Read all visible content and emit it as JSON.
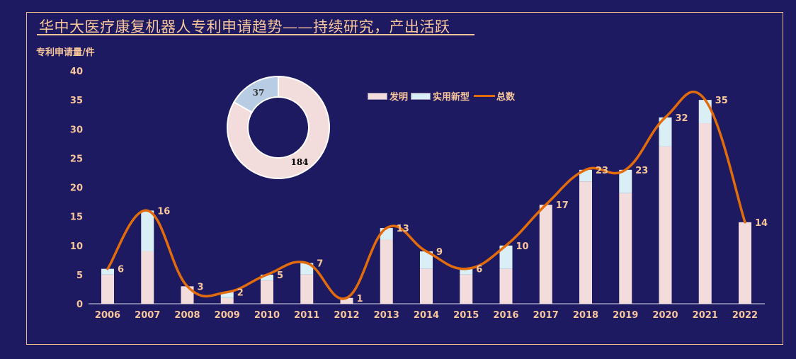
{
  "title": "华中大医疗康复机器人专利申请趋势——持续研究，产出活跃",
  "colors": {
    "background": "#1e1a62",
    "invention": "#f2dcdc",
    "utility": "#daeef5",
    "total": "#e36c0a",
    "text": "#f6c59a",
    "donut_utility": "#b8cce4"
  },
  "chart_data": [
    {
      "type": "bar",
      "stacked": true,
      "ylabel": "专利申请量/件",
      "ylim": [
        0,
        40
      ],
      "yticks": [
        "0",
        "5",
        "10",
        "15",
        "20",
        "25",
        "30",
        "35",
        "40"
      ],
      "categories": [
        "2006",
        "2007",
        "2008",
        "2009",
        "2010",
        "2011",
        "2012",
        "2013",
        "2014",
        "2015",
        "2016",
        "2017",
        "2018",
        "2019",
        "2020",
        "2021",
        "2022"
      ],
      "series": [
        {
          "name": "发明",
          "type": "bar",
          "values": [
            5,
            9,
            3,
            1,
            4,
            5,
            1,
            11,
            6,
            5,
            6,
            17,
            21,
            19,
            27,
            31,
            14
          ]
        },
        {
          "name": "实用新型",
          "type": "bar",
          "values": [
            1,
            7,
            0,
            1,
            1,
            2,
            0,
            2,
            3,
            1,
            4,
            0,
            2,
            4,
            5,
            4,
            0
          ]
        },
        {
          "name": "总数",
          "type": "line",
          "smooth": true,
          "values": [
            6,
            16,
            3,
            2,
            5,
            7,
            1,
            13,
            9,
            6,
            10,
            17,
            23,
            23,
            32,
            35,
            14
          ]
        }
      ],
      "legend": "top-right",
      "grid": false
    },
    {
      "type": "pie",
      "donut": true,
      "labels": [
        "发明",
        "实用新型"
      ],
      "values": [
        184,
        37
      ],
      "value_labels": [
        "184",
        "37"
      ]
    }
  ]
}
